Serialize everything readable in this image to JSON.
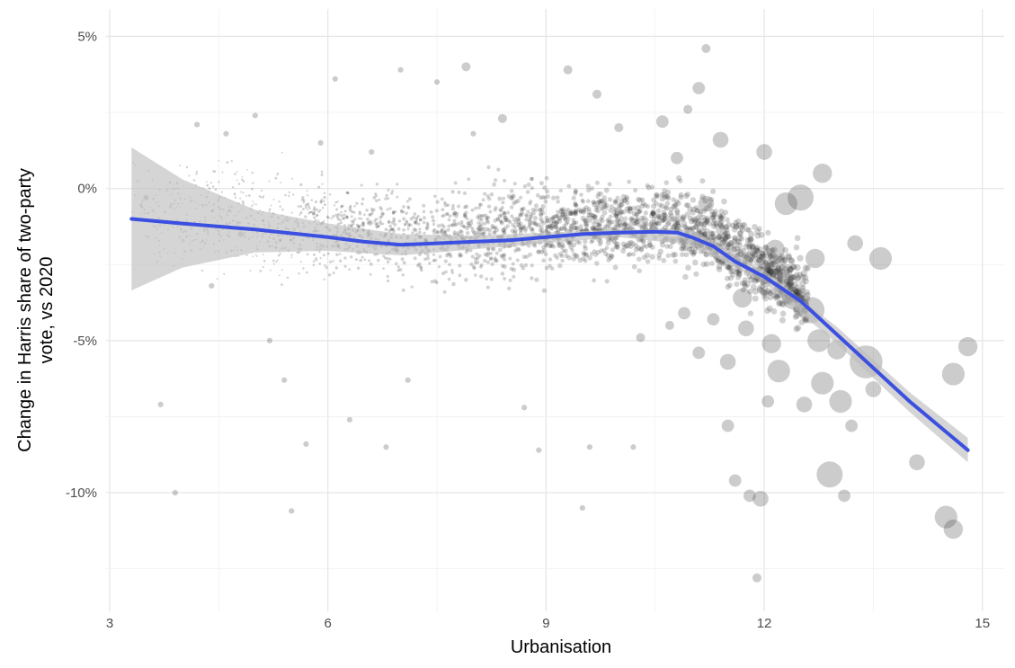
{
  "chart_data": {
    "type": "scatter",
    "title": "",
    "xlabel": "Urbanisation",
    "ylabel": [
      "Change in Harris share of two-party",
      "vote, vs 2020"
    ],
    "xlim": [
      2.95,
      15.3
    ],
    "ylim": [
      -13.9,
      5.9
    ],
    "x_ticks": [
      3,
      6,
      9,
      12,
      15
    ],
    "x_tick_labels": [
      "3",
      "6",
      "9",
      "12",
      "15"
    ],
    "y_ticks": [
      5,
      0,
      -5,
      -10
    ],
    "y_tick_labels": [
      "5%",
      "0%",
      "-5%",
      "-10%"
    ],
    "grid": true,
    "legend": "none",
    "colors": {
      "points": "#333333",
      "smooth_line": "#3b4fe0",
      "confidence_band": "#bfbfbf",
      "grid": "#e6e6e6"
    },
    "smooth_line": {
      "x": [
        3.3,
        4,
        5,
        6,
        6.5,
        7,
        7.5,
        8,
        8.5,
        9,
        9.5,
        10,
        10.5,
        10.8,
        11,
        11.3,
        11.6,
        12,
        12.5,
        13,
        13.5,
        14,
        14.5,
        14.8
      ],
      "y": [
        -1.0,
        -1.15,
        -1.35,
        -1.6,
        -1.75,
        -1.85,
        -1.8,
        -1.75,
        -1.7,
        -1.6,
        -1.5,
        -1.45,
        -1.42,
        -1.45,
        -1.6,
        -1.9,
        -2.4,
        -2.9,
        -3.7,
        -4.8,
        -5.9,
        -7.0,
        -8.0,
        -8.6
      ]
    },
    "confidence_band": {
      "x": [
        3.3,
        4,
        5,
        6,
        7,
        8,
        9,
        10,
        11,
        12,
        13,
        14,
        14.8
      ],
      "upper": [
        1.35,
        0.3,
        -0.7,
        -1.15,
        -1.5,
        -1.55,
        -1.45,
        -1.35,
        -1.35,
        -2.7,
        -4.55,
        -6.7,
        -8.2
      ],
      "lower": [
        -3.35,
        -2.6,
        -2.1,
        -2.05,
        -2.2,
        -2.0,
        -1.8,
        -1.6,
        -1.85,
        -3.1,
        -5.1,
        -7.35,
        -9.0
      ]
    },
    "points": [
      {
        "x": 3.5,
        "y": -0.3,
        "size": 1
      },
      {
        "x": 3.7,
        "y": -7.1,
        "size": 1
      },
      {
        "x": 3.9,
        "y": -10.0,
        "size": 1
      },
      {
        "x": 4.2,
        "y": 2.1,
        "size": 1
      },
      {
        "x": 4.4,
        "y": -3.2,
        "size": 1
      },
      {
        "x": 4.6,
        "y": 1.8,
        "size": 1
      },
      {
        "x": 4.8,
        "y": -1.5,
        "size": 1
      },
      {
        "x": 5.0,
        "y": 2.4,
        "size": 1
      },
      {
        "x": 5.2,
        "y": -5.0,
        "size": 1
      },
      {
        "x": 5.4,
        "y": -6.3,
        "size": 1
      },
      {
        "x": 5.5,
        "y": -10.6,
        "size": 1
      },
      {
        "x": 5.7,
        "y": -8.4,
        "size": 1
      },
      {
        "x": 5.9,
        "y": 1.5,
        "size": 1
      },
      {
        "x": 6.1,
        "y": 3.6,
        "size": 1
      },
      {
        "x": 6.3,
        "y": -7.6,
        "size": 1
      },
      {
        "x": 6.6,
        "y": 1.2,
        "size": 1
      },
      {
        "x": 6.8,
        "y": -8.5,
        "size": 1
      },
      {
        "x": 7.0,
        "y": 3.9,
        "size": 1
      },
      {
        "x": 7.1,
        "y": -6.3,
        "size": 1
      },
      {
        "x": 7.5,
        "y": 3.5,
        "size": 1
      },
      {
        "x": 7.9,
        "y": 4.0,
        "size": 2
      },
      {
        "x": 8.0,
        "y": 1.8,
        "size": 1
      },
      {
        "x": 8.4,
        "y": 2.3,
        "size": 2
      },
      {
        "x": 8.7,
        "y": -7.2,
        "size": 1
      },
      {
        "x": 8.9,
        "y": -8.6,
        "size": 1
      },
      {
        "x": 9.3,
        "y": 3.9,
        "size": 2
      },
      {
        "x": 9.5,
        "y": -10.5,
        "size": 1
      },
      {
        "x": 9.6,
        "y": -8.5,
        "size": 1
      },
      {
        "x": 9.7,
        "y": 3.1,
        "size": 2
      },
      {
        "x": 10.0,
        "y": 2.0,
        "size": 2
      },
      {
        "x": 10.2,
        "y": -8.5,
        "size": 1
      },
      {
        "x": 10.3,
        "y": -4.9,
        "size": 2
      },
      {
        "x": 10.6,
        "y": 2.2,
        "size": 3
      },
      {
        "x": 10.7,
        "y": -4.5,
        "size": 2
      },
      {
        "x": 10.8,
        "y": 1.0,
        "size": 3
      },
      {
        "x": 10.9,
        "y": -4.1,
        "size": 3
      },
      {
        "x": 10.95,
        "y": 2.6,
        "size": 2
      },
      {
        "x": 11.1,
        "y": 3.3,
        "size": 3
      },
      {
        "x": 11.1,
        "y": -5.4,
        "size": 3
      },
      {
        "x": 11.2,
        "y": 4.6,
        "size": 2
      },
      {
        "x": 11.2,
        "y": -0.5,
        "size": 4
      },
      {
        "x": 11.3,
        "y": -4.3,
        "size": 3
      },
      {
        "x": 11.4,
        "y": 1.6,
        "size": 4
      },
      {
        "x": 11.5,
        "y": -5.7,
        "size": 4
      },
      {
        "x": 11.5,
        "y": -7.8,
        "size": 3
      },
      {
        "x": 11.6,
        "y": -9.6,
        "size": 3
      },
      {
        "x": 11.7,
        "y": -3.6,
        "size": 5
      },
      {
        "x": 11.75,
        "y": -4.6,
        "size": 4
      },
      {
        "x": 11.8,
        "y": -10.1,
        "size": 3
      },
      {
        "x": 11.9,
        "y": -12.8,
        "size": 2
      },
      {
        "x": 11.95,
        "y": -10.2,
        "size": 4
      },
      {
        "x": 12.0,
        "y": 1.2,
        "size": 4
      },
      {
        "x": 12.05,
        "y": -7.0,
        "size": 3
      },
      {
        "x": 12.1,
        "y": -5.1,
        "size": 5
      },
      {
        "x": 12.15,
        "y": -2.0,
        "size": 5
      },
      {
        "x": 12.2,
        "y": -6.0,
        "size": 6
      },
      {
        "x": 12.3,
        "y": -0.5,
        "size": 6
      },
      {
        "x": 12.4,
        "y": -3.6,
        "size": 6
      },
      {
        "x": 12.5,
        "y": -0.3,
        "size": 7
      },
      {
        "x": 12.55,
        "y": -7.1,
        "size": 4
      },
      {
        "x": 12.65,
        "y": -4.0,
        "size": 7
      },
      {
        "x": 12.7,
        "y": -2.3,
        "size": 5
      },
      {
        "x": 12.75,
        "y": -5.0,
        "size": 6
      },
      {
        "x": 12.8,
        "y": 0.5,
        "size": 5
      },
      {
        "x": 12.8,
        "y": -6.4,
        "size": 6
      },
      {
        "x": 12.9,
        "y": -9.4,
        "size": 7
      },
      {
        "x": 13.0,
        "y": -5.3,
        "size": 5
      },
      {
        "x": 13.05,
        "y": -7.0,
        "size": 6
      },
      {
        "x": 13.1,
        "y": -10.1,
        "size": 3
      },
      {
        "x": 13.2,
        "y": -7.8,
        "size": 3
      },
      {
        "x": 13.25,
        "y": -1.8,
        "size": 4
      },
      {
        "x": 13.4,
        "y": -5.7,
        "size": 9
      },
      {
        "x": 13.5,
        "y": -6.6,
        "size": 4
      },
      {
        "x": 13.6,
        "y": -2.3,
        "size": 6
      },
      {
        "x": 14.1,
        "y": -9.0,
        "size": 4
      },
      {
        "x": 14.5,
        "y": -10.8,
        "size": 6
      },
      {
        "x": 14.6,
        "y": -11.2,
        "size": 5
      },
      {
        "x": 14.6,
        "y": -6.1,
        "size": 6
      },
      {
        "x": 14.8,
        "y": -5.2,
        "size": 5
      }
    ]
  }
}
